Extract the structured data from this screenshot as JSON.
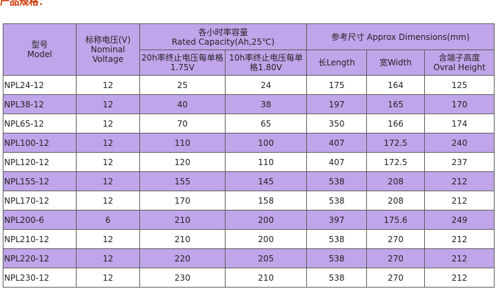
{
  "page_title": "产品规格：",
  "colors": {
    "header_bg": "#c1a5ea",
    "alt_row_bg": "#c1a5ea",
    "border": "#5a5a5a",
    "title": "#cc3300"
  },
  "table": {
    "headers": {
      "model_cn": "型号",
      "model_en": "Model",
      "voltage_cn": "标称电压(V)",
      "voltage_en1": "Nominal",
      "voltage_en2": "Voltage",
      "capacity_cn": "各小时率容量",
      "capacity_en": "Rated Capacity(Ah,25℃)",
      "cap20_line1": "20h率终止电压每单格",
      "cap20_line2": "1.75V",
      "cap10_line1": "10h率终止电压每单",
      "cap10_line2": "格1.80V",
      "dimensions": "参考尺寸 Approx Dimensions(mm)",
      "length": "长Length",
      "width": "宽Width",
      "height_line1": "含端子高度",
      "height_line2": "Ovral Height"
    },
    "rows": [
      {
        "model": "NPL24-12",
        "voltage": "12",
        "cap20": "25",
        "cap10": "24",
        "length": "175",
        "width": "164",
        "height": "125"
      },
      {
        "model": "NPL38-12",
        "voltage": "12",
        "cap20": "40",
        "cap10": "38",
        "length": "197",
        "width": "165",
        "height": "170"
      },
      {
        "model": "NPL65-12",
        "voltage": "12",
        "cap20": "70",
        "cap10": "65",
        "length": "350",
        "width": "166",
        "height": "174"
      },
      {
        "model": "NPL100-12",
        "voltage": "12",
        "cap20": "110",
        "cap10": "100",
        "length": "407",
        "width": "172.5",
        "height": "240"
      },
      {
        "model": "NPL120-12",
        "voltage": "12",
        "cap20": "120",
        "cap10": "110",
        "length": "407",
        "width": "172.5",
        "height": "237"
      },
      {
        "model": "NPL155-12",
        "voltage": "12",
        "cap20": "155",
        "cap10": "145",
        "length": "538",
        "width": "208",
        "height": "212"
      },
      {
        "model": "NPL170-12",
        "voltage": "12",
        "cap20": "170",
        "cap10": "158",
        "length": "538",
        "width": "208",
        "height": "212"
      },
      {
        "model": "NPL200-6",
        "voltage": "6",
        "cap20": "210",
        "cap10": "200",
        "length": "397",
        "width": "175.6",
        "height": "249"
      },
      {
        "model": "NPL210-12",
        "voltage": "12",
        "cap20": "210",
        "cap10": "200",
        "length": "538",
        "width": "270",
        "height": "212"
      },
      {
        "model": "NPL220-12",
        "voltage": "12",
        "cap20": "220",
        "cap10": "205",
        "length": "538",
        "width": "270",
        "height": "212"
      },
      {
        "model": "NPL230-12",
        "voltage": "12",
        "cap20": "230",
        "cap10": "210",
        "length": "538",
        "width": "270",
        "height": "212"
      }
    ]
  }
}
